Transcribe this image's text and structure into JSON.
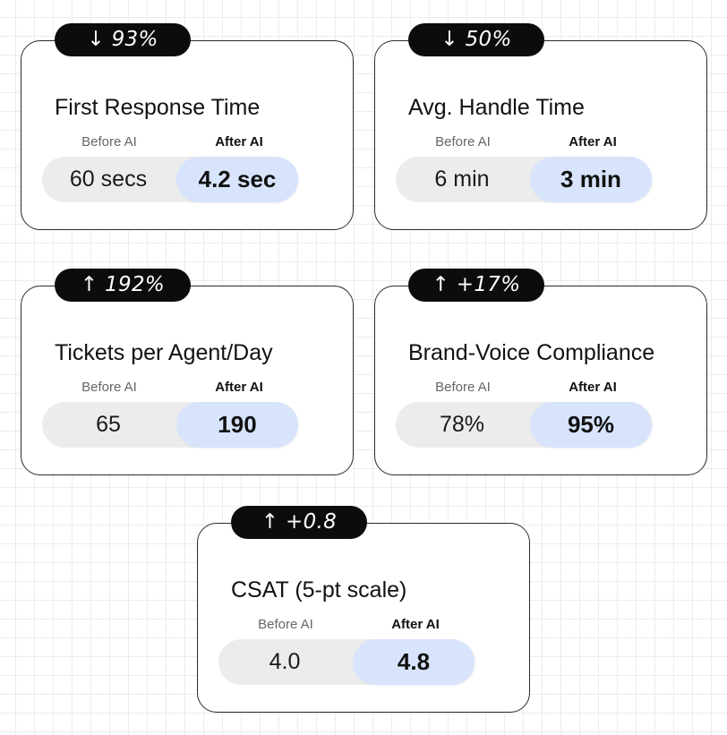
{
  "labels": {
    "before": "Before AI",
    "after": "After AI"
  },
  "cards": [
    {
      "badge": "↓ 93%",
      "title": "First Response Time",
      "before": "60 secs",
      "after": "4.2 sec"
    },
    {
      "badge": "↓ 50%",
      "title": "Avg. Handle Time",
      "before": "6 min",
      "after": "3 min"
    },
    {
      "badge": "↑ 192%",
      "title": "Tickets per Agent/Day",
      "before": "65",
      "after": "190"
    },
    {
      "badge": "↑ +17%",
      "title": "Brand-Voice Compliance",
      "before": "78%",
      "after": "95%"
    },
    {
      "badge": "↑ +0.8",
      "title": "CSAT (5-pt scale)",
      "before": "4.0",
      "after": "4.8"
    }
  ],
  "colors": {
    "badge_bg": "#0c0c0c",
    "after_highlight": "#d7e4fc",
    "pill_bg": "#ececec"
  }
}
